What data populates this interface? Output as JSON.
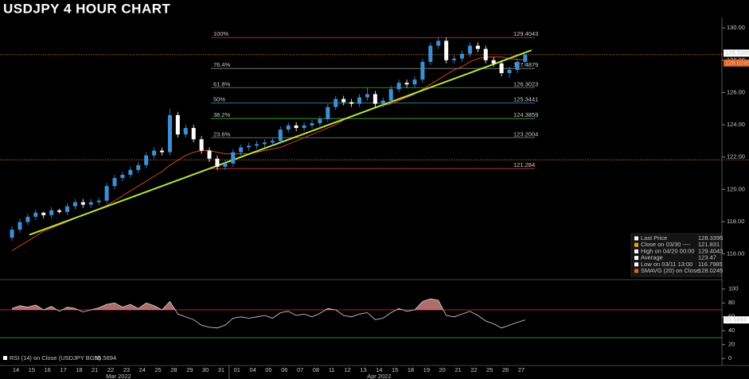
{
  "chart_data": {
    "type": "candlestick",
    "title": "USDJPY 4 HOUR CHART",
    "x_groups": [
      {
        "label": "Mar 2022",
        "categories": [
          "14",
          "15",
          "16",
          "17",
          "18",
          "21",
          "22",
          "23",
          "24",
          "25",
          "28",
          "29",
          "30",
          "31"
        ]
      },
      {
        "label": "Apr 2022",
        "categories": [
          "01",
          "04",
          "05",
          "06",
          "07",
          "08",
          "11",
          "12",
          "13",
          "14",
          "15",
          "18",
          "19",
          "20",
          "21",
          "22",
          "25",
          "26",
          "27"
        ]
      }
    ],
    "ohlc": [
      [
        117.0,
        117.7,
        116.8,
        117.5
      ],
      [
        117.5,
        118.17,
        117.3,
        117.97
      ],
      [
        117.97,
        118.5,
        117.77,
        118.3
      ],
      [
        118.3,
        118.75,
        118.1,
        118.55
      ],
      [
        118.55,
        118.6,
        118.2,
        118.4
      ],
      [
        118.4,
        118.9,
        118.2,
        118.7
      ],
      [
        118.7,
        118.8,
        118.5,
        118.6
      ],
      [
        118.6,
        119.15,
        118.4,
        118.95
      ],
      [
        118.95,
        119.4,
        118.75,
        119.2
      ],
      [
        119.2,
        119.4,
        118.85,
        119.05
      ],
      [
        119.05,
        119.4,
        118.85,
        119.2
      ],
      [
        119.2,
        119.5,
        119.0,
        119.3
      ],
      [
        119.3,
        120.4,
        119.1,
        120.2
      ],
      [
        120.2,
        120.9,
        120.0,
        120.7
      ],
      [
        120.7,
        121.1,
        120.5,
        120.9
      ],
      [
        120.9,
        121.4,
        120.7,
        121.2
      ],
      [
        121.2,
        121.7,
        121.0,
        121.5
      ],
      [
        121.5,
        122.3,
        121.3,
        122.1
      ],
      [
        122.1,
        122.6,
        121.9,
        122.4
      ],
      [
        122.4,
        122.6,
        122.1,
        122.3
      ],
      [
        122.3,
        125.0,
        122.1,
        124.6
      ],
      [
        124.6,
        124.8,
        123.2,
        123.4
      ],
      [
        123.4,
        124.0,
        123.2,
        123.8
      ],
      [
        123.8,
        124.0,
        122.9,
        123.1
      ],
      [
        123.1,
        123.3,
        122.2,
        122.4
      ],
      [
        122.4,
        122.6,
        121.7,
        121.9
      ],
      [
        121.9,
        122.1,
        121.2,
        121.4
      ],
      [
        121.4,
        121.8,
        121.2,
        121.6
      ],
      [
        121.6,
        122.5,
        121.4,
        122.3
      ],
      [
        122.3,
        122.8,
        122.1,
        122.6
      ],
      [
        122.6,
        122.9,
        122.4,
        122.7
      ],
      [
        122.7,
        123.0,
        122.5,
        122.8
      ],
      [
        122.8,
        123.1,
        122.6,
        122.9
      ],
      [
        122.9,
        123.2,
        122.7,
        123.0
      ],
      [
        123.0,
        123.9,
        122.8,
        123.7
      ],
      [
        123.7,
        124.16,
        123.5,
        123.96
      ],
      [
        123.96,
        124.16,
        123.6,
        123.8
      ],
      [
        123.8,
        124.16,
        123.6,
        123.96
      ],
      [
        123.96,
        124.3,
        123.76,
        124.1
      ],
      [
        124.1,
        124.55,
        123.9,
        124.35
      ],
      [
        124.35,
        125.3,
        124.15,
        125.1
      ],
      [
        125.1,
        125.8,
        124.9,
        125.6
      ],
      [
        125.6,
        125.8,
        125.2,
        125.4
      ],
      [
        125.4,
        125.6,
        125.1,
        125.3
      ],
      [
        125.3,
        125.9,
        125.1,
        125.7
      ],
      [
        125.7,
        126.3,
        125.5,
        125.9
      ],
      [
        125.9,
        126.1,
        125.1,
        125.3
      ],
      [
        125.3,
        125.7,
        125.1,
        125.5
      ],
      [
        125.5,
        126.4,
        125.3,
        126.2
      ],
      [
        126.2,
        126.8,
        126.0,
        126.6
      ],
      [
        126.6,
        126.8,
        126.3,
        126.5
      ],
      [
        126.5,
        127.0,
        126.3,
        126.8
      ],
      [
        126.8,
        128.1,
        126.6,
        127.9
      ],
      [
        127.9,
        129.1,
        127.7,
        128.9
      ],
      [
        128.9,
        129.4043,
        128.7,
        129.2
      ],
      [
        129.2,
        129.4,
        127.8,
        128.0
      ],
      [
        128.0,
        128.3,
        127.8,
        128.1
      ],
      [
        128.1,
        128.6,
        127.9,
        128.4
      ],
      [
        128.4,
        129.1,
        128.2,
        128.9
      ],
      [
        128.9,
        129.1,
        128.5,
        128.7
      ],
      [
        128.7,
        128.9,
        127.8,
        128.0
      ],
      [
        128.0,
        128.2,
        127.6,
        127.8
      ],
      [
        127.8,
        128.0,
        127.0,
        127.2
      ],
      [
        127.2,
        127.6,
        126.9,
        127.4
      ],
      [
        127.4,
        128.1,
        127.2,
        127.9
      ],
      [
        127.9,
        128.54,
        127.7,
        128.34
      ]
    ],
    "up_color": "#3d8fd6",
    "down_color": "#ffffff",
    "sma": {
      "color": "#d2441e",
      "values": [
        116.2,
        116.5,
        116.8,
        117.1,
        117.4,
        117.6,
        117.8,
        118.0,
        118.2,
        118.4,
        118.6,
        118.8,
        119.0,
        119.3,
        119.6,
        119.9,
        120.2,
        120.5,
        120.8,
        121.1,
        121.5,
        121.8,
        122.1,
        122.3,
        122.4,
        122.4,
        122.3,
        122.2,
        122.2,
        122.2,
        122.2,
        122.3,
        122.4,
        122.5,
        122.6,
        122.8,
        123.0,
        123.2,
        123.4,
        123.6,
        123.8,
        124.0,
        124.3,
        124.5,
        124.7,
        124.9,
        125.1,
        125.2,
        125.3,
        125.5,
        125.7,
        125.9,
        126.2,
        126.5,
        126.8,
        127.1,
        127.4,
        127.6,
        127.9,
        128.1,
        128.2,
        128.2,
        128.2,
        128.1,
        128.05,
        128.0245
      ]
    },
    "trendline": {
      "x": [
        2.2,
        65.8
      ],
      "y": [
        117.18,
        128.62
      ],
      "color": "#b5e63c"
    },
    "fib_levels": [
      {
        "label": "100%",
        "value": 129.4043,
        "color": "#d9333f"
      },
      {
        "label": "76.4%",
        "value": 127.4879,
        "color": "#8a8a8a"
      },
      {
        "label": "61.8%",
        "value": 126.3023,
        "color": "#3cb043"
      },
      {
        "label": "50%",
        "value": 125.3441,
        "color": "#3aa0c8"
      },
      {
        "label": "38.2%",
        "value": 124.3859,
        "color": "#3cb043"
      },
      {
        "label": "23.6%",
        "value": 123.2004,
        "color": "#8a8a8a"
      },
      {
        "value": 121.284,
        "color": "#d9333f"
      }
    ],
    "ylim": [
      114.5,
      130.5
    ],
    "yticks": [
      {
        "value": 116,
        "label": "116.00"
      },
      {
        "value": 118,
        "label": "118.00"
      },
      {
        "value": 120,
        "label": "120.00"
      },
      {
        "value": 122,
        "label": "122.00"
      },
      {
        "value": 124,
        "label": "124.00"
      },
      {
        "value": 126,
        "label": "126.00"
      },
      {
        "value": 128,
        "label": "128.00"
      },
      {
        "value": 130,
        "label": "130.00"
      }
    ],
    "legend": [
      {
        "label": "Last Price",
        "value": 128.3395,
        "color": "#ffffff"
      },
      {
        "label": "Close on 03/30 ----",
        "value": 121.831,
        "color": "#f0a020"
      },
      {
        "label": "High on 04/20 00:00",
        "value": 129.4043,
        "color": "#ffffff"
      },
      {
        "label": "Average",
        "value": 123.47,
        "color": "#ffffff"
      },
      {
        "label": "Low on 03/11 13:00",
        "value": 116.7985,
        "color": "#ffffff"
      },
      {
        "label": "SMAVG (20) on Close",
        "value": 128.0245,
        "color": "#e8601c"
      }
    ],
    "price_line_color": "#e08a20",
    "rsi": {
      "name": "RSI (14) on Close (USDJPY BGN)",
      "values": [
        72,
        76,
        74,
        77,
        70,
        75,
        68,
        74,
        72,
        67,
        70,
        73,
        78,
        80,
        74,
        78,
        72,
        80,
        76,
        70,
        82,
        64,
        60,
        56,
        48,
        45,
        44,
        48,
        58,
        60,
        58,
        60,
        62,
        58,
        66,
        68,
        62,
        64,
        60,
        65,
        72,
        70,
        62,
        60,
        64,
        66,
        56,
        58,
        66,
        72,
        68,
        70,
        82,
        86,
        84,
        62,
        60,
        64,
        68,
        62,
        54,
        50,
        44,
        48,
        52,
        55.5694
      ],
      "overbought": 70,
      "oversold": 30,
      "ylim": [
        -10,
        110
      ],
      "yticks": [
        0,
        20,
        40,
        60,
        80,
        100
      ],
      "color": "#d8d8d8",
      "fill": "#e89090",
      "overbought_color": "#d9333f",
      "oversold_color": "#3cb043"
    }
  }
}
